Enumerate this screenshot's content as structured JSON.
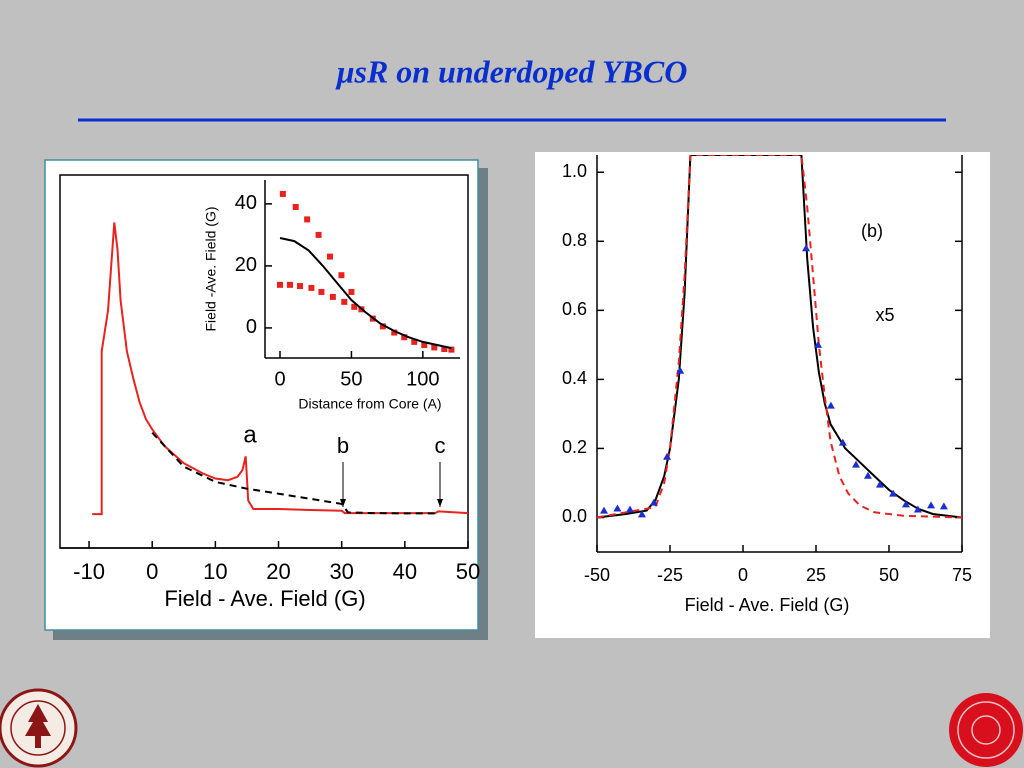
{
  "title": "μsR on underdoped YBCO",
  "chart_data": [
    {
      "type": "line",
      "xlabel": "Field - Ave. Field (G)",
      "xlim": [
        -14.6,
        50
      ],
      "ylim": [
        -0.1,
        1.0
      ],
      "xticks": [
        -10,
        0,
        10,
        20,
        30,
        40,
        50
      ],
      "annotations": [
        "a",
        "b",
        "c"
      ],
      "series": [
        {
          "color": "#e8231f",
          "dash": false,
          "x": [
            -9.5,
            -8,
            -8,
            -7,
            -6,
            -5.5,
            -5,
            -4,
            -3,
            -2,
            -1,
            0,
            2,
            5,
            8,
            10,
            12,
            13.5,
            14.3,
            14.8,
            15.2,
            16,
            20,
            25,
            30,
            30.5,
            35,
            40,
            44.8,
            45.3,
            50
          ],
          "values": [
            0,
            0,
            0.48,
            0.6,
            0.86,
            0.78,
            0.63,
            0.48,
            0.4,
            0.33,
            0.28,
            0.25,
            0.2,
            0.15,
            0.12,
            0.105,
            0.1,
            0.11,
            0.13,
            0.17,
            0.04,
            0.015,
            0.015,
            0.012,
            0.01,
            0.003,
            0.003,
            0.003,
            0.003,
            0.008,
            0.003
          ]
        },
        {
          "color": "#000000",
          "dash": true,
          "x": [
            0,
            5,
            10,
            15,
            20,
            25,
            30,
            31,
            35,
            40,
            45
          ],
          "values": [
            0.24,
            0.14,
            0.095,
            0.075,
            0.06,
            0.045,
            0.03,
            0.005,
            0.003,
            0.002,
            0.002
          ]
        }
      ]
    },
    {
      "type": "line",
      "xlabel": "Distance from Core (A)",
      "ylabel": "Field -Ave. Field (G)",
      "xlim": [
        -10.5,
        126
      ],
      "ylim": [
        -9.7,
        47.7
      ],
      "xticks": [
        0,
        50,
        100
      ],
      "yticks": [
        0,
        20,
        40
      ],
      "series": [
        {
          "color": "#e8231f",
          "mode": "markers",
          "marker": "square",
          "x": [
            2,
            11,
            19,
            27,
            35,
            43,
            50,
            57,
            65,
            72,
            80,
            87,
            94,
            101,
            108,
            115,
            120
          ],
          "values": [
            43.2,
            39,
            35,
            30,
            23,
            17,
            11.6,
            6,
            3,
            0.5,
            -1.5,
            -3,
            -4.5,
            -5.5,
            -6.3,
            -6.8,
            -7
          ]
        },
        {
          "color": "#e8231f",
          "mode": "markers",
          "marker": "square",
          "x": [
            0,
            7,
            14,
            22,
            29,
            37,
            45,
            52
          ],
          "values": [
            13.9,
            13.9,
            13.5,
            12.9,
            11.6,
            10,
            8.4,
            6.8
          ]
        },
        {
          "color": "#000000",
          "mode": "line",
          "x": [
            0,
            10,
            20,
            30,
            40,
            50,
            60,
            70,
            80,
            90,
            100,
            110,
            120
          ],
          "values": [
            29,
            28,
            25,
            20,
            14.5,
            9,
            5,
            1.5,
            -1,
            -3,
            -4.5,
            -5.5,
            -6.5
          ]
        }
      ]
    },
    {
      "type": "line",
      "xlabel": "Field - Ave. Field (G)",
      "xlim": [
        -50,
        75
      ],
      "ylim": [
        -0.1,
        1.05
      ],
      "xticks": [
        -50,
        -25,
        0,
        25,
        50,
        75
      ],
      "yticks": [
        {
          "value": 0,
          "label": "0.0"
        },
        0.2,
        0.4,
        0.6,
        0.8,
        {
          "value": 1,
          "label": "1.0"
        }
      ],
      "annotations": [
        "(b)",
        "x5"
      ],
      "series": [
        {
          "color": "#000000",
          "mode": "line",
          "x": [
            -50,
            -40,
            -33,
            -30,
            -27,
            -25,
            -22,
            -20,
            -18,
            20,
            22,
            24,
            26,
            28,
            30,
            35,
            40,
            45,
            50,
            55,
            60,
            65,
            75
          ],
          "values": [
            0,
            0.01,
            0.02,
            0.05,
            0.12,
            0.2,
            0.4,
            0.65,
            1.05,
            1.05,
            0.75,
            0.55,
            0.42,
            0.33,
            0.27,
            0.2,
            0.16,
            0.12,
            0.08,
            0.05,
            0.025,
            0.01,
            0
          ]
        },
        {
          "color": "#e8231f",
          "mode": "line",
          "dash": true,
          "x": [
            -50,
            -30,
            -27,
            -25,
            -22,
            -20,
            -18,
            20,
            22,
            24,
            26,
            28,
            30,
            33,
            36,
            40,
            45,
            55,
            75
          ],
          "values": [
            0,
            0.03,
            0.1,
            0.2,
            0.45,
            0.7,
            1.05,
            1.05,
            0.9,
            0.7,
            0.5,
            0.35,
            0.22,
            0.12,
            0.07,
            0.035,
            0.015,
            0.005,
            0
          ]
        },
        {
          "color": "#1a2fd0",
          "mode": "markers",
          "marker": "triangle",
          "x": [
            -47.6,
            -43,
            -38.7,
            -34.6,
            -30.5,
            -26,
            -21.5,
            21.6,
            25.7,
            30.1,
            34.2,
            38.7,
            42.8,
            46.9,
            51.4,
            55.8,
            59.9,
            64.4,
            68.8
          ],
          "values": [
            0.02,
            0.026,
            0.023,
            0.009,
            0.043,
            0.176,
            0.425,
            0.78,
            0.5,
            0.324,
            0.217,
            0.153,
            0.121,
            0.095,
            0.069,
            0.038,
            0.023,
            0.035,
            0.032
          ]
        }
      ]
    }
  ]
}
